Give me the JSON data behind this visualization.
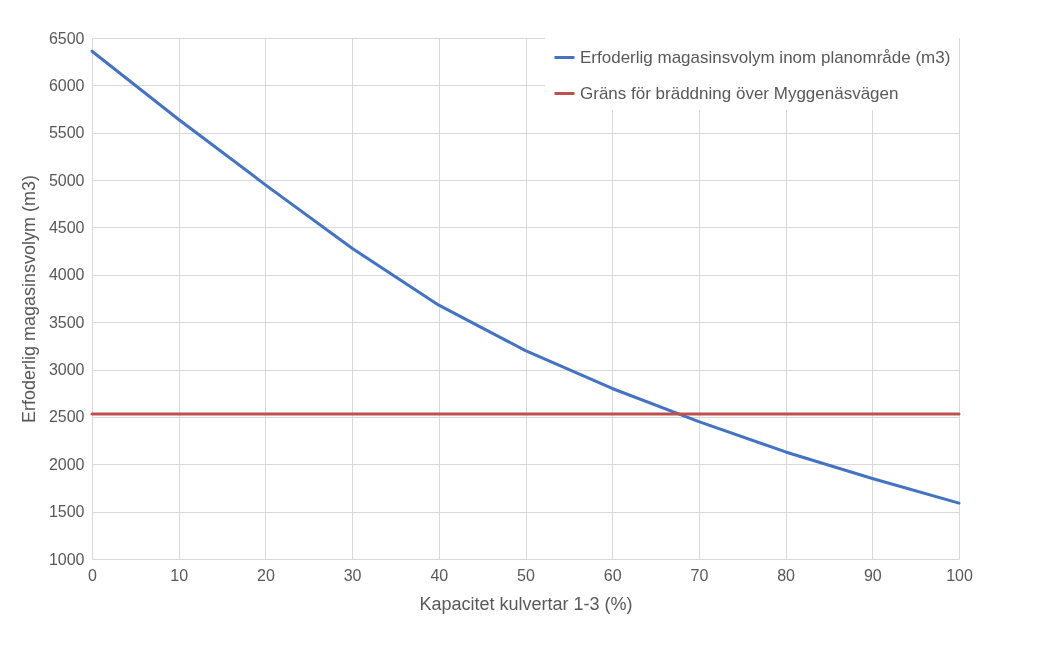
{
  "chart_data": {
    "type": "line",
    "xlabel": "Kapacitet kulvertar 1-3 (%)",
    "ylabel": "Erfoderlig magasinsvolym (m3)",
    "x": [
      0,
      10,
      20,
      30,
      40,
      50,
      60,
      70,
      80,
      90,
      100
    ],
    "series": [
      {
        "name": "Erfoderlig magasinsvolym inom planområde (m3)",
        "color": "#4472c4",
        "values": [
          6360,
          5640,
          4950,
          4280,
          3680,
          3200,
          2800,
          2450,
          2130,
          1850,
          1590
        ]
      },
      {
        "name": "Gräns för bräddning över Myggenäsvägen",
        "color": "#c0504d",
        "values": [
          2530,
          2530,
          2530,
          2530,
          2530,
          2530,
          2530,
          2530,
          2530,
          2530,
          2530
        ]
      }
    ],
    "xlim": [
      0,
      100
    ],
    "xticks": [
      0,
      10,
      20,
      30,
      40,
      50,
      60,
      70,
      80,
      90,
      100
    ],
    "ylim": [
      1000,
      6500
    ],
    "yticks": [
      1000,
      1500,
      2000,
      2500,
      3000,
      3500,
      4000,
      4500,
      5000,
      5500,
      6000,
      6500
    ],
    "grid": true,
    "legend": "top right",
    "marker": "none",
    "line_style": "solid"
  }
}
